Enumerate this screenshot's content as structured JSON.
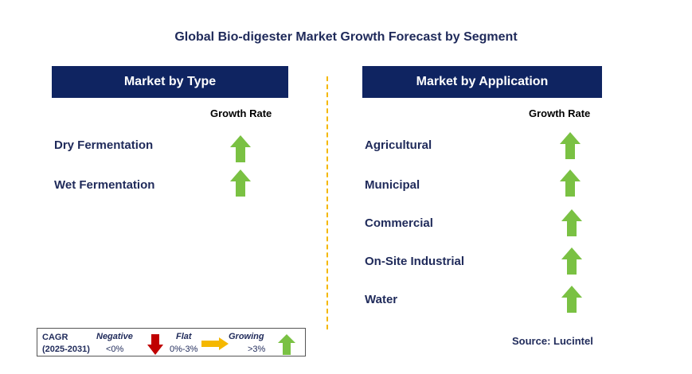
{
  "title": "Global Bio-digester Market Growth Forecast by Segment",
  "left_panel": {
    "header": "Market by Type",
    "growth_rate_label": "Growth Rate",
    "items": [
      {
        "label": "Dry Fermentation",
        "trend": "growing"
      },
      {
        "label": "Wet Fermentation",
        "trend": "growing"
      }
    ]
  },
  "right_panel": {
    "header": "Market by Application",
    "growth_rate_label": "Growth Rate",
    "items": [
      {
        "label": "Agricultural",
        "trend": "growing"
      },
      {
        "label": "Municipal",
        "trend": "growing"
      },
      {
        "label": "Commercial",
        "trend": "growing"
      },
      {
        "label": "On-Site Industrial",
        "trend": "growing"
      },
      {
        "label": "Water",
        "trend": "growing"
      }
    ]
  },
  "legend": {
    "cagr_label": "CAGR",
    "period": "(2025-2031)",
    "negative": {
      "label": "Negative",
      "range": "<0%",
      "icon": "down-arrow-icon",
      "color": "#c00000"
    },
    "flat": {
      "label": "Flat",
      "range": "0%-3%",
      "icon": "right-arrow-icon",
      "color": "#f5b800"
    },
    "growing": {
      "label": "Growing",
      "range": ">3%",
      "icon": "up-arrow-icon",
      "color": "#7ac143"
    }
  },
  "source": "Source: Lucintel",
  "colors": {
    "header_bg": "#0f2461",
    "divider": "#f5b800",
    "up_arrow": "#7ac143"
  }
}
